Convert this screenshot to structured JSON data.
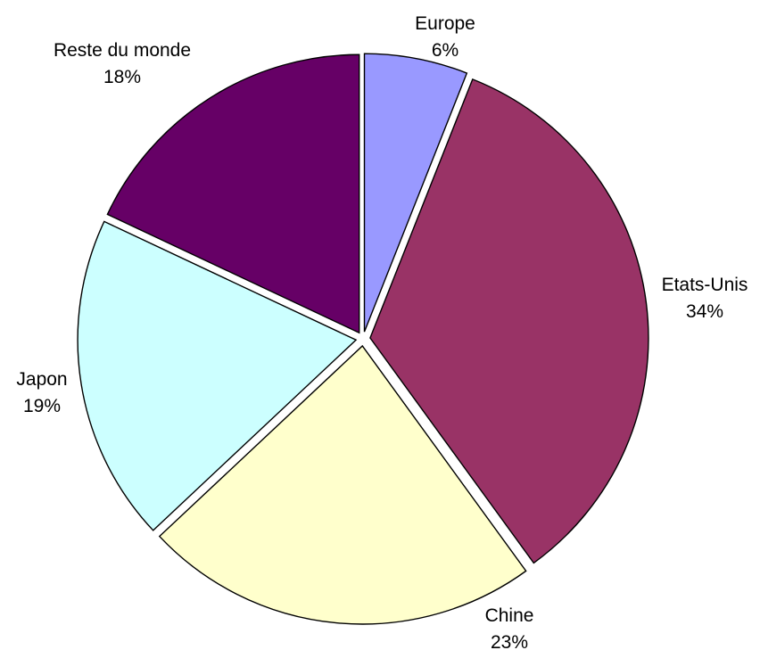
{
  "chart_data": {
    "type": "pie",
    "slices": [
      {
        "name": "Europe",
        "label": "Europe",
        "percent_label": "6%",
        "value": 6,
        "color": "#9999ff"
      },
      {
        "name": "Etats-Unis",
        "label": "Etats-Unis",
        "percent_label": "34%",
        "value": 34,
        "color": "#993366"
      },
      {
        "name": "Chine",
        "label": "Chine",
        "percent_label": "23%",
        "value": 23,
        "color": "#ffffcc"
      },
      {
        "name": "Japon",
        "label": "Japon",
        "percent_label": "19%",
        "value": 19,
        "color": "#ccffff"
      },
      {
        "name": "Reste du monde",
        "label": "Reste du monde",
        "percent_label": "18%",
        "value": 18,
        "color": "#660066"
      }
    ],
    "start_angle_deg": 0,
    "direction": "clockwise",
    "exploded": true,
    "legend": "none"
  }
}
